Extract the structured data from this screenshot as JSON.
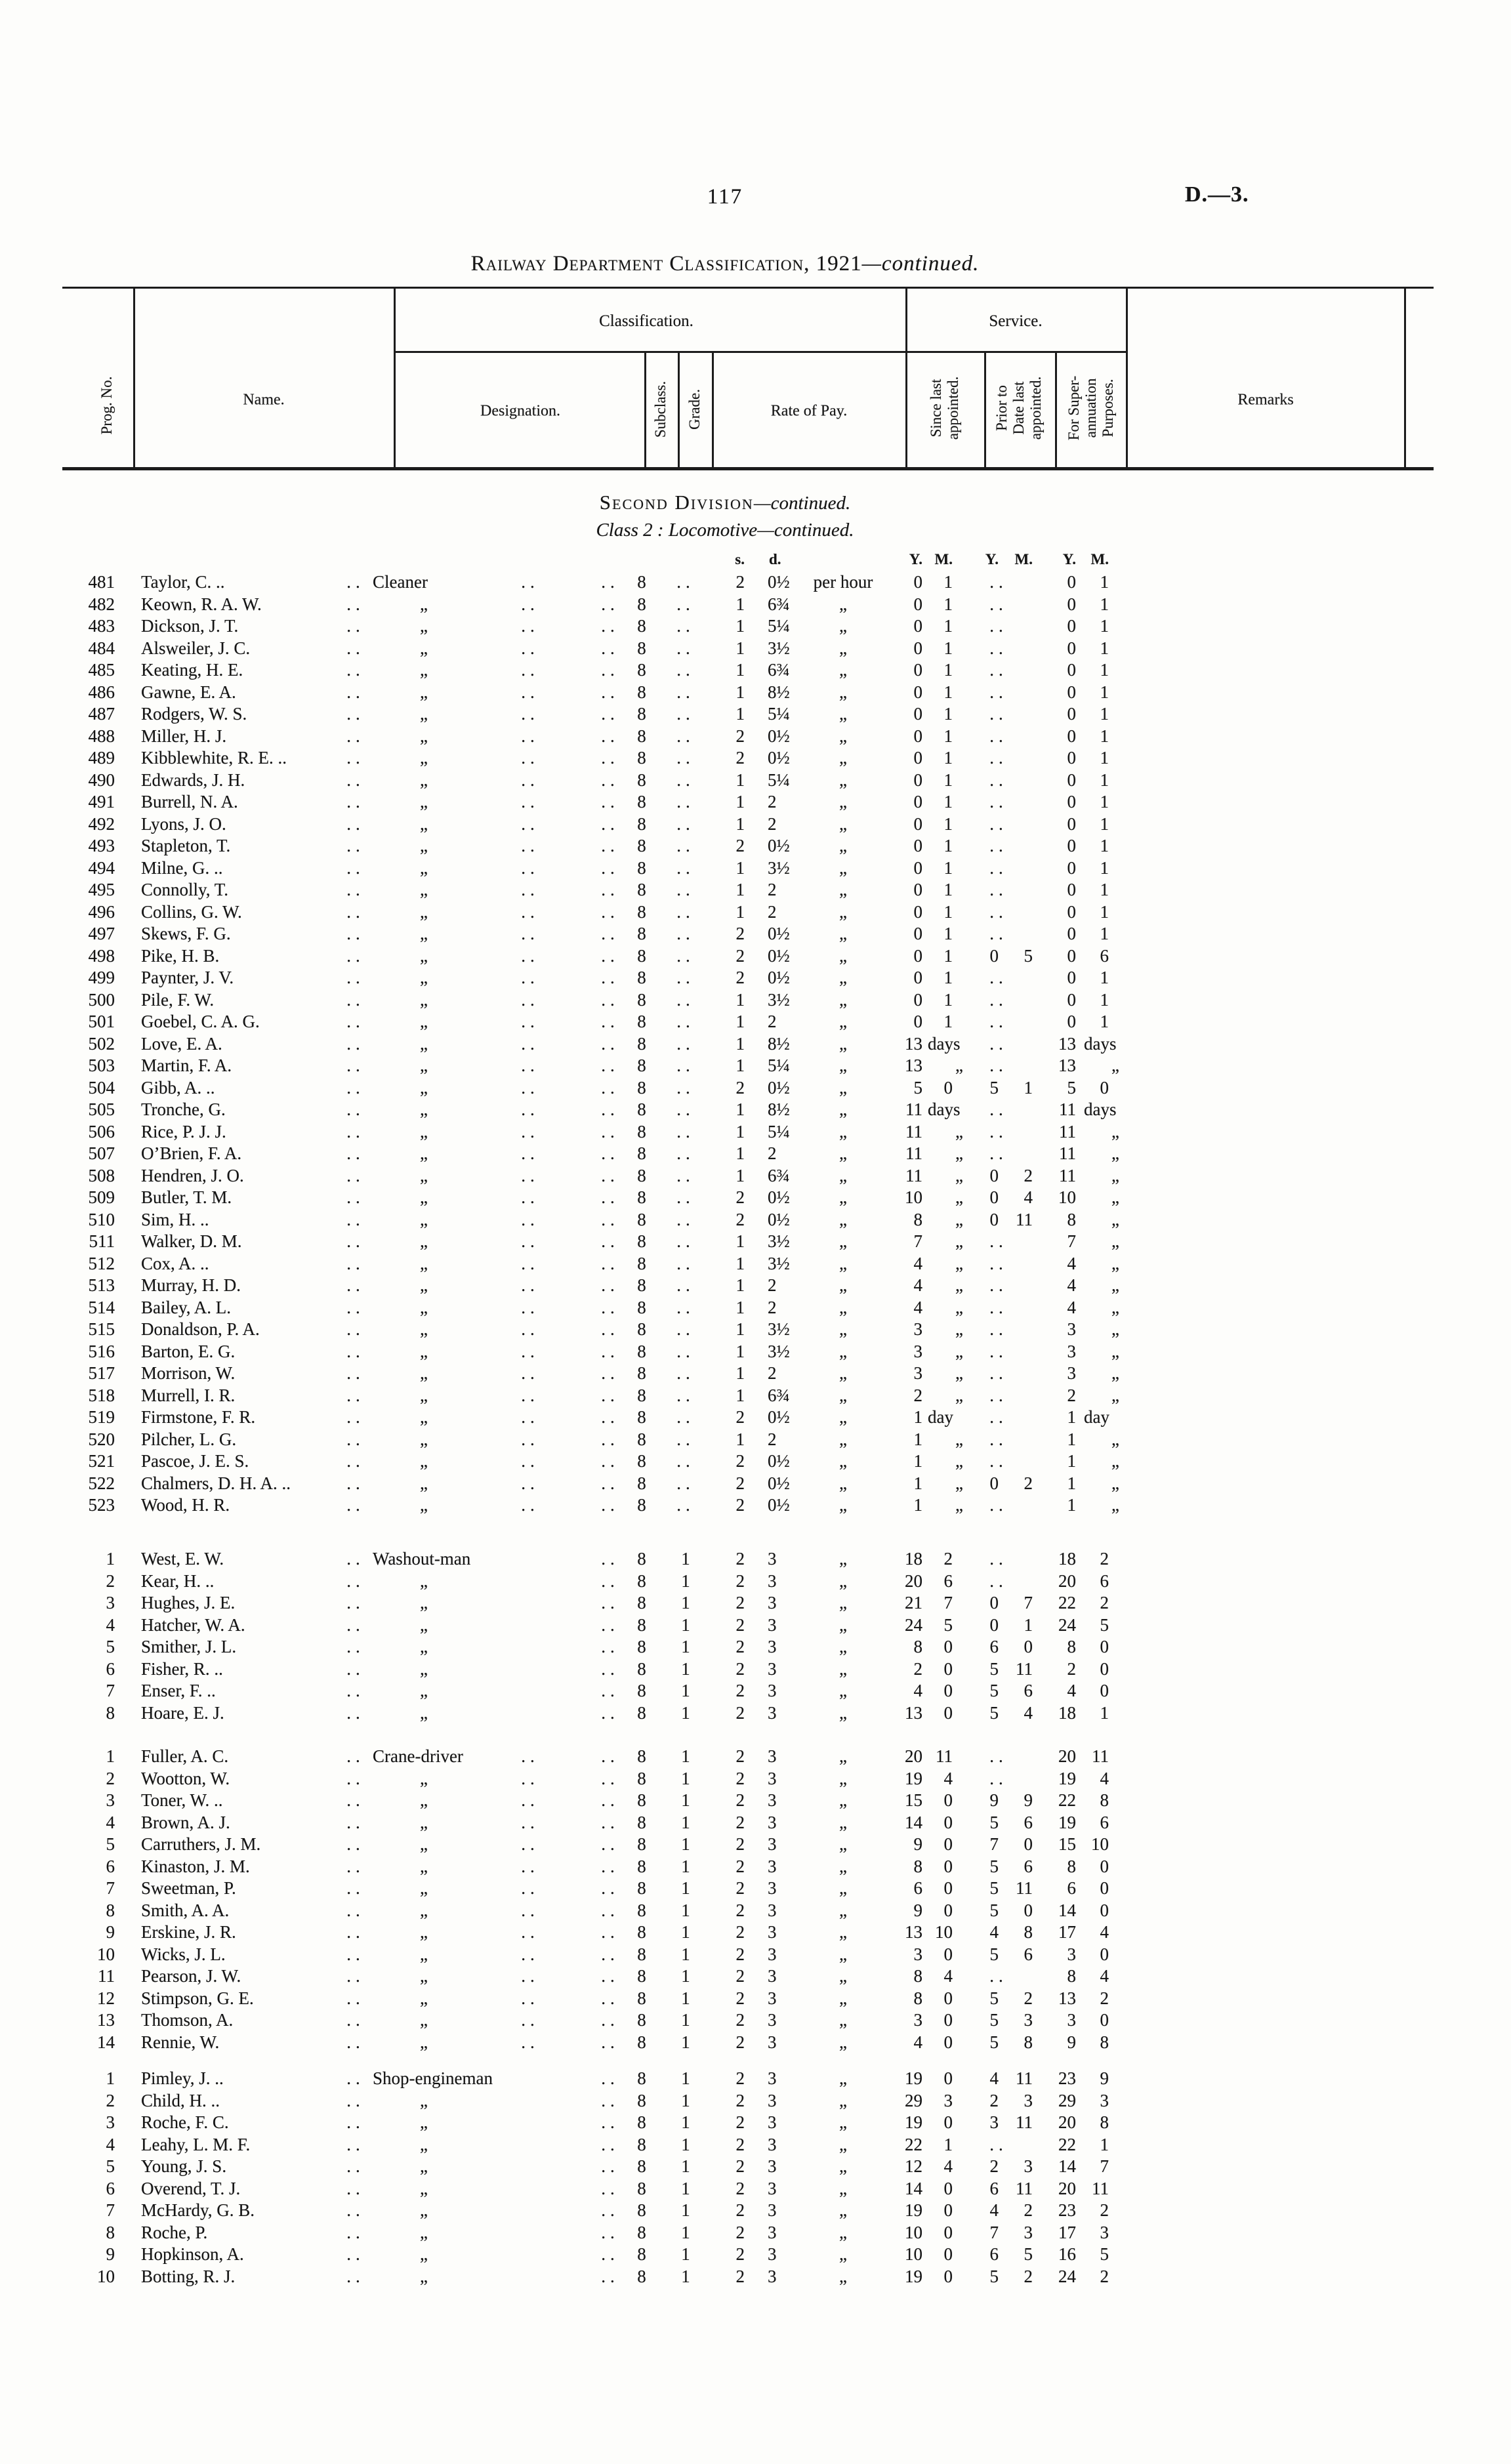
{
  "page": {
    "number": "117",
    "reference": "D.—3."
  },
  "title": {
    "main": "Railway Department Classification, 1921",
    "continued": "—continued."
  },
  "section": {
    "division": "Second Division",
    "division_cont": "—continued.",
    "class_label": "Class 2 :",
    "class_name": "Locomotive",
    "class_cont": "—continued."
  },
  "table_header": {
    "prog": "Prog. No.",
    "name": "Name.",
    "classification": "Classification.",
    "designation": "Designation.",
    "subclass": "Subclass.",
    "grade": "Grade.",
    "rate": "Rate of Pay.",
    "service": "Service.",
    "since": "Since last\nappointed.",
    "prior": "Prior to\nDate last\nappointed.",
    "superann": "For Super-\nannuation\nPurposes.",
    "remarks": "Remarks"
  },
  "units": {
    "s": "s.",
    "d": "d.",
    "y": "Y.",
    "m": "M."
  },
  "marks": {
    "ditto": "„",
    "dots": "..",
    "per_hour": "per hour"
  },
  "groups": [
    {
      "designation": "Cleaner",
      "grade": "..",
      "dots_after_desig": true,
      "rows": [
        [
          "481",
          "Taylor, C. ..",
          "2",
          "0½",
          "0|1",
          "..",
          "0|1"
        ],
        [
          "482",
          "Keown, R. A. W.",
          "1",
          "6¾",
          "0|1",
          "..",
          "0|1"
        ],
        [
          "483",
          "Dickson, J. T.",
          "1",
          "5¼",
          "0|1",
          "..",
          "0|1"
        ],
        [
          "484",
          "Alsweiler, J. C.",
          "1",
          "3½",
          "0|1",
          "..",
          "0|1"
        ],
        [
          "485",
          "Keating, H. E.",
          "1",
          "6¾",
          "0|1",
          "..",
          "0|1"
        ],
        [
          "486",
          "Gawne, E. A.",
          "1",
          "8½",
          "0|1",
          "..",
          "0|1"
        ],
        [
          "487",
          "Rodgers, W. S.",
          "1",
          "5¼",
          "0|1",
          "..",
          "0|1"
        ],
        [
          "488",
          "Miller, H. J.",
          "2",
          "0½",
          "0|1",
          "..",
          "0|1"
        ],
        [
          "489",
          "Kibblewhite, R. E. ..",
          "2",
          "0½",
          "0|1",
          "..",
          "0|1"
        ],
        [
          "490",
          "Edwards, J. H.",
          "1",
          "5¼",
          "0|1",
          "..",
          "0|1"
        ],
        [
          "491",
          "Burrell, N. A.",
          "1",
          "2",
          "0|1",
          "..",
          "0|1"
        ],
        [
          "492",
          "Lyons, J. O.",
          "1",
          "2",
          "0|1",
          "..",
          "0|1"
        ],
        [
          "493",
          "Stapleton, T.",
          "2",
          "0½",
          "0|1",
          "..",
          "0|1"
        ],
        [
          "494",
          "Milne, G. ..",
          "1",
          "3½",
          "0|1",
          "..",
          "0|1"
        ],
        [
          "495",
          "Connolly, T.",
          "1",
          "2",
          "0|1",
          "..",
          "0|1"
        ],
        [
          "496",
          "Collins, G. W.",
          "1",
          "2",
          "0|1",
          "..",
          "0|1"
        ],
        [
          "497",
          "Skews, F. G.",
          "2",
          "0½",
          "0|1",
          "..",
          "0|1"
        ],
        [
          "498",
          "Pike, H. B.",
          "2",
          "0½",
          "0|1",
          "0|5",
          "0|6"
        ],
        [
          "499",
          "Paynter, J. V.",
          "2",
          "0½",
          "0|1",
          "..",
          "0|1"
        ],
        [
          "500",
          "Pile, F. W.",
          "1",
          "3½",
          "0|1",
          "..",
          "0|1"
        ],
        [
          "501",
          "Goebel, C. A. G.",
          "1",
          "2",
          "0|1",
          "..",
          "0|1"
        ],
        [
          "502",
          "Love, E. A.",
          "1",
          "8½",
          "13|days",
          "..",
          "13|days"
        ],
        [
          "503",
          "Martin, F. A.",
          "1",
          "5¼",
          "13|„",
          "..",
          "13|„"
        ],
        [
          "504",
          "Gibb, A. ..",
          "2",
          "0½",
          "5|0",
          "5|1",
          "5|0"
        ],
        [
          "505",
          "Tronche, G.",
          "1",
          "8½",
          "11|days",
          "..",
          "11|days"
        ],
        [
          "506",
          "Rice, P. J. J.",
          "1",
          "5¼",
          "11|„",
          "..",
          "11|„"
        ],
        [
          "507",
          "O’Brien, F. A.",
          "1",
          "2",
          "11|„",
          "..",
          "11|„"
        ],
        [
          "508",
          "Hendren, J. O.",
          "1",
          "6¾",
          "11|„",
          "0|2",
          "11|„"
        ],
        [
          "509",
          "Butler, T. M.",
          "2",
          "0½",
          "10|„",
          "0|4",
          "10|„"
        ],
        [
          "510",
          "Sim, H. ..",
          "2",
          "0½",
          "8|„",
          "0|11",
          "8|„"
        ],
        [
          "511",
          "Walker, D. M.",
          "1",
          "3½",
          "7|„",
          "..",
          "7|„"
        ],
        [
          "512",
          "Cox, A. ..",
          "1",
          "3½",
          "4|„",
          "..",
          "4|„"
        ],
        [
          "513",
          "Murray, H. D.",
          "1",
          "2",
          "4|„",
          "..",
          "4|„"
        ],
        [
          "514",
          "Bailey, A. L.",
          "1",
          "2",
          "4|„",
          "..",
          "4|„"
        ],
        [
          "515",
          "Donaldson, P. A.",
          "1",
          "3½",
          "3|„",
          "..",
          "3|„"
        ],
        [
          "516",
          "Barton, E. G.",
          "1",
          "3½",
          "3|„",
          "..",
          "3|„"
        ],
        [
          "517",
          "Morrison, W.",
          "1",
          "2",
          "3|„",
          "..",
          "3|„"
        ],
        [
          "518",
          "Murrell, I. R.",
          "1",
          "6¾",
          "2|„",
          "..",
          "2|„"
        ],
        [
          "519",
          "Firmstone, F. R.",
          "2",
          "0½",
          "1|day",
          "..",
          "1|day"
        ],
        [
          "520",
          "Pilcher, L. G.",
          "1",
          "2",
          "1|„",
          "..",
          "1|„"
        ],
        [
          "521",
          "Pascoe, J. E. S.",
          "2",
          "0½",
          "1|„",
          "..",
          "1|„"
        ],
        [
          "522",
          "Chalmers, D. H. A. ..",
          "2",
          "0½",
          "1|„",
          "0|2",
          "1|„"
        ],
        [
          "523",
          "Wood, H. R.",
          "2",
          "0½",
          "1|„",
          "..",
          "1|„"
        ]
      ]
    },
    {
      "designation": "Washout-man",
      "grade": "1",
      "dots_after_desig": false,
      "rows": [
        [
          "1",
          "West, E. W.",
          "2",
          "3",
          "18|2",
          "..",
          "18|2"
        ],
        [
          "2",
          "Kear, H. ..",
          "2",
          "3",
          "20|6",
          "..",
          "20|6"
        ],
        [
          "3",
          "Hughes, J. E.",
          "2",
          "3",
          "21|7",
          "0|7",
          "22|2"
        ],
        [
          "4",
          "Hatcher, W. A.",
          "2",
          "3",
          "24|5",
          "0|1",
          "24|5"
        ],
        [
          "5",
          "Smither, J. L.",
          "2",
          "3",
          "8|0",
          "6|0",
          "8|0"
        ],
        [
          "6",
          "Fisher, R. ..",
          "2",
          "3",
          "2|0",
          "5|11",
          "2|0"
        ],
        [
          "7",
          "Enser, F. ..",
          "2",
          "3",
          "4|0",
          "5|6",
          "4|0"
        ],
        [
          "8",
          "Hoare, E. J.",
          "2",
          "3",
          "13|0",
          "5|4",
          "18|1"
        ]
      ]
    },
    {
      "designation": "Crane-driver",
      "grade": "1",
      "dots_after_desig": true,
      "rows": [
        [
          "1",
          "Fuller, A. C.",
          "2",
          "3",
          "20|11",
          "..",
          "20|11"
        ],
        [
          "2",
          "Wootton, W.",
          "2",
          "3",
          "19|4",
          "..",
          "19|4"
        ],
        [
          "3",
          "Toner, W. ..",
          "2",
          "3",
          "15|0",
          "9|9",
          "22|8"
        ],
        [
          "4",
          "Brown, A. J.",
          "2",
          "3",
          "14|0",
          "5|6",
          "19|6"
        ],
        [
          "5",
          "Carruthers, J. M.",
          "2",
          "3",
          "9|0",
          "7|0",
          "15|10"
        ],
        [
          "6",
          "Kinaston, J. M.",
          "2",
          "3",
          "8|0",
          "5|6",
          "8|0"
        ],
        [
          "7",
          "Sweetman, P.",
          "2",
          "3",
          "6|0",
          "5|11",
          "6|0"
        ],
        [
          "8",
          "Smith, A. A.",
          "2",
          "3",
          "9|0",
          "5|0",
          "14|0"
        ],
        [
          "9",
          "Erskine, J. R.",
          "2",
          "3",
          "13|10",
          "4|8",
          "17|4"
        ],
        [
          "10",
          "Wicks, J. L.",
          "2",
          "3",
          "3|0",
          "5|6",
          "3|0"
        ],
        [
          "11",
          "Pearson, J. W.",
          "2",
          "3",
          "8|4",
          "..",
          "8|4"
        ],
        [
          "12",
          "Stimpson, G. E.",
          "2",
          "3",
          "8|0",
          "5|2",
          "13|2"
        ],
        [
          "13",
          "Thomson, A.",
          "2",
          "3",
          "3|0",
          "5|3",
          "3|0"
        ],
        [
          "14",
          "Rennie, W.",
          "2",
          "3",
          "4|0",
          "5|8",
          "9|8"
        ]
      ]
    },
    {
      "designation": "Shop-engineman",
      "grade": "1",
      "dots_after_desig": false,
      "rows": [
        [
          "1",
          "Pimley, J. ..",
          "2",
          "3",
          "19|0",
          "4|11",
          "23|9"
        ],
        [
          "2",
          "Child, H. ..",
          "2",
          "3",
          "29|3",
          "2|3",
          "29|3"
        ],
        [
          "3",
          "Roche, F. C.",
          "2",
          "3",
          "19|0",
          "3|11",
          "20|8"
        ],
        [
          "4",
          "Leahy, L. M. F.",
          "2",
          "3",
          "22|1",
          "..",
          "22|1"
        ],
        [
          "5",
          "Young, J. S.",
          "2",
          "3",
          "12|4",
          "2|3",
          "14|7"
        ],
        [
          "6",
          "Overend, T. J.",
          "2",
          "3",
          "14|0",
          "6|11",
          "20|11"
        ],
        [
          "7",
          "McHardy, G. B.",
          "2",
          "3",
          "19|0",
          "4|2",
          "23|2"
        ],
        [
          "8",
          "Roche, P.",
          "2",
          "3",
          "10|0",
          "7|3",
          "17|3"
        ],
        [
          "9",
          "Hopkinson, A.",
          "2",
          "3",
          "10|0",
          "6|5",
          "16|5"
        ],
        [
          "10",
          "Botting, R. J.",
          "2",
          "3",
          "19|0",
          "5|2",
          "24|2"
        ]
      ]
    }
  ]
}
